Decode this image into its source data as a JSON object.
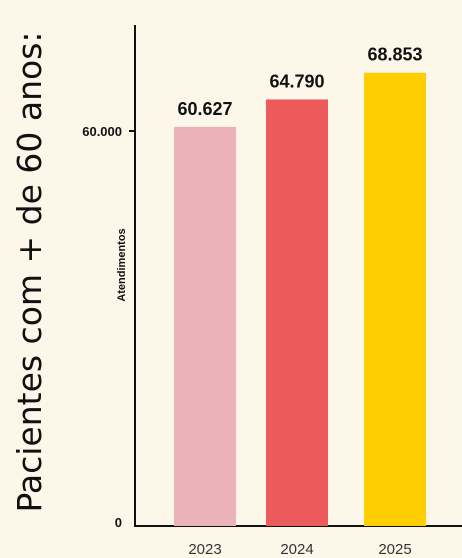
{
  "chart_data": {
    "type": "bar",
    "title": "Pacientes com + de 60 anos:",
    "xlabel": "",
    "ylabel": "Atendimentos",
    "categories": [
      "2023",
      "2024",
      "2025"
    ],
    "values": [
      60627,
      64790,
      68853
    ],
    "value_labels": [
      "60.627",
      "64.790",
      "68.853"
    ],
    "yticks": [
      {
        "value": 0,
        "label": "0"
      },
      {
        "value": 60000,
        "label": "60.000"
      }
    ],
    "ylim": [
      0,
      72000
    ],
    "grid": false,
    "legend": "none",
    "colors": [
      "#ebb3b8",
      "#ec5a5c",
      "#fece00"
    ]
  }
}
